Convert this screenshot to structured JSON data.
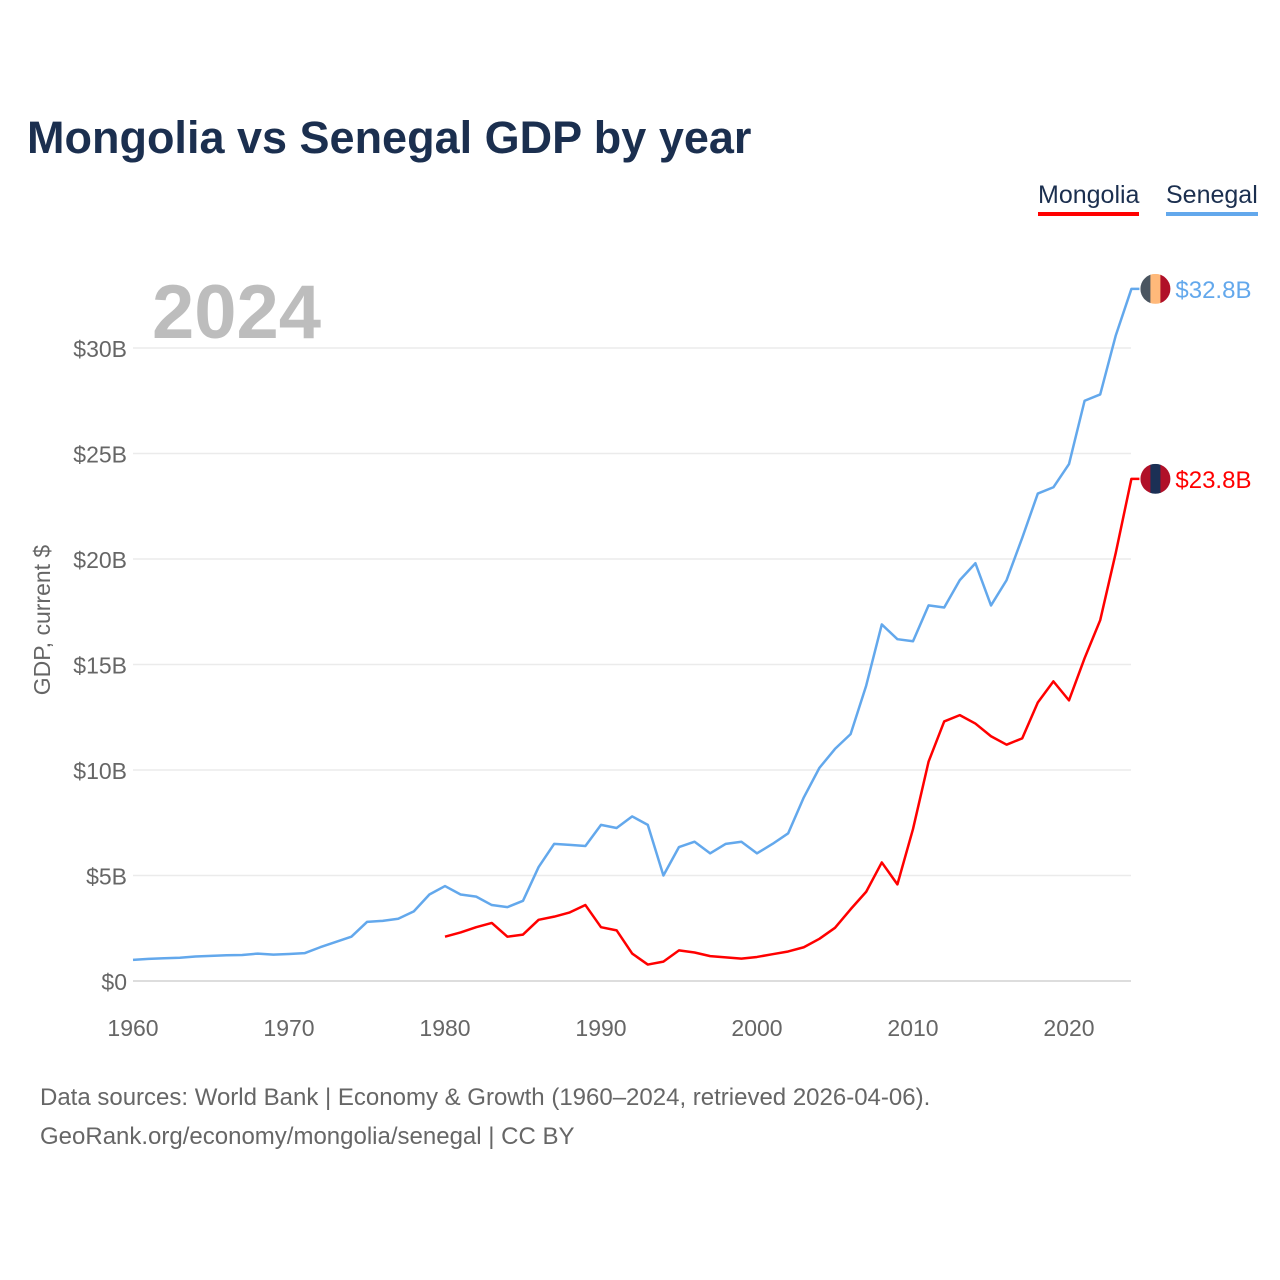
{
  "chart_data": {
    "type": "line",
    "title": "Mongolia vs Senegal GDP by year",
    "ylabel": "GDP, current $",
    "xlabel": "",
    "year_label": "2024",
    "xlim": [
      1960,
      2024
    ],
    "ylim": [
      0,
      30
    ],
    "x_ticks": [
      "1960",
      "1970",
      "1980",
      "1990",
      "2000",
      "2010",
      "2020"
    ],
    "y_ticks": [
      {
        "value": 0,
        "label": "$0"
      },
      {
        "value": 5,
        "label": "$5B"
      },
      {
        "value": 10,
        "label": "$10B"
      },
      {
        "value": 15,
        "label": "$15B"
      },
      {
        "value": 20,
        "label": "$20B"
      },
      {
        "value": 25,
        "label": "$25B"
      },
      {
        "value": 30,
        "label": "$30B"
      }
    ],
    "legend_position": "top-right",
    "series": [
      {
        "name": "Mongolia",
        "color": "#ff0000",
        "start_year": 1980,
        "end_label": "$23.8B",
        "values": [
          2.1,
          2.3,
          2.55,
          2.75,
          2.1,
          2.2,
          2.9,
          3.05,
          3.25,
          3.6,
          2.55,
          2.4,
          1.3,
          0.78,
          0.92,
          1.45,
          1.35,
          1.18,
          1.12,
          1.06,
          1.14,
          1.27,
          1.4,
          1.6,
          2.0,
          2.52,
          3.4,
          4.23,
          5.62,
          4.58,
          7.2,
          10.4,
          12.3,
          12.6,
          12.2,
          11.6,
          11.2,
          11.5,
          13.2,
          14.2,
          13.3,
          15.3,
          17.1,
          20.3,
          23.8
        ]
      },
      {
        "name": "Senegal",
        "color": "#63a8ec",
        "start_year": 1960,
        "end_label": "$32.8B",
        "values": [
          1.0,
          1.05,
          1.08,
          1.1,
          1.16,
          1.19,
          1.22,
          1.23,
          1.3,
          1.25,
          1.28,
          1.32,
          1.6,
          1.85,
          2.1,
          2.8,
          2.85,
          2.95,
          3.3,
          4.1,
          4.5,
          4.1,
          4.0,
          3.6,
          3.5,
          3.8,
          5.4,
          6.5,
          6.45,
          6.4,
          7.4,
          7.25,
          7.8,
          7.4,
          5.0,
          6.35,
          6.6,
          6.05,
          6.5,
          6.6,
          6.05,
          6.5,
          7.0,
          8.7,
          10.1,
          11.0,
          11.7,
          14.0,
          16.9,
          16.2,
          16.1,
          17.8,
          17.7,
          19.0,
          19.8,
          17.8,
          19.0,
          21.0,
          23.1,
          23.4,
          24.5,
          27.5,
          27.8,
          30.6,
          32.8
        ]
      }
    ]
  },
  "footer": {
    "line1": "Data sources: World Bank | Economy & Growth (1960–2024, retrieved 2026-04-06).",
    "line2": "GeoRank.org/economy/mongolia/senegal | CC BY"
  }
}
